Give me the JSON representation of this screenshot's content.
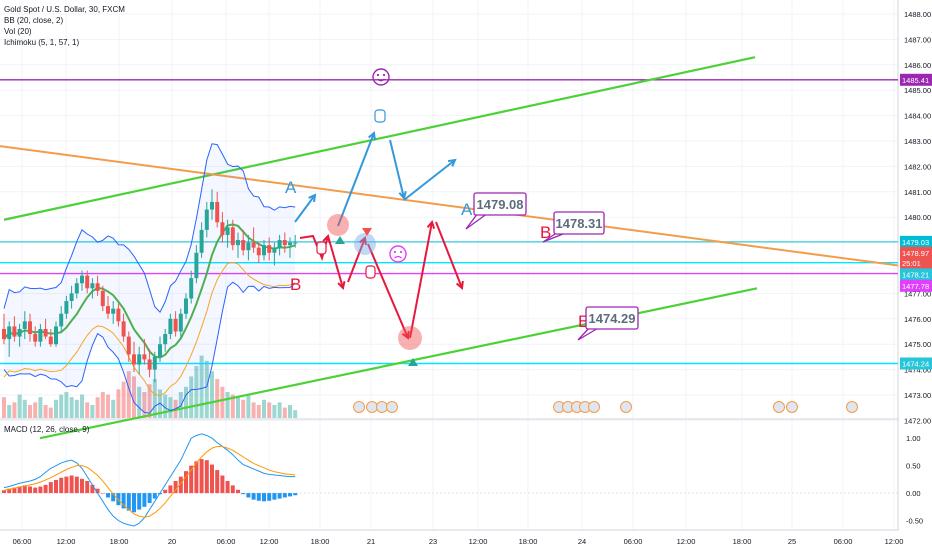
{
  "legend": {
    "title": "Gold Spot / U.S. Dollar, 30, FXCM",
    "bb": "BB (20, close, 2)",
    "vol": "Vol (20)",
    "ichimoku": "Ichimoku (5, 1, 57, 1)",
    "macd": "MACD (12, 26, close, 9)"
  },
  "colors": {
    "up": "#26a69a",
    "down": "#ef5350",
    "bb": "#2962ff",
    "ichimoku_base": "#4caf50",
    "channel": "#4cd137",
    "orange_trend": "#f39c4b",
    "magenta": "#e040fb",
    "purple": "#9c27b0",
    "cyan": "#00e5ff",
    "blue_arrow": "#3498db",
    "red_arrow": "#e8173c"
  },
  "chart_data": {
    "type": "candlestick",
    "price_axis": {
      "ticks": [
        "1488.00",
        "1487.00",
        "1486.00",
        "1485.00",
        "1484.00",
        "1483.00",
        "1482.00",
        "1481.00",
        "1480.00",
        "1479.00",
        "1478.00",
        "1477.00",
        "1476.00",
        "1475.00",
        "1474.00",
        "1473.00",
        "1472.00"
      ],
      "range": [
        1471.5,
        1488.5
      ]
    },
    "time_axis": {
      "ticks": [
        "06:00",
        "12:00",
        "18:00",
        "20",
        "06:00",
        "12:00",
        "18:00",
        "21",
        "23",
        "12:00",
        "18:00",
        "24",
        "06:00",
        "12:00",
        "18:00",
        "25",
        "06:00",
        "12:00"
      ]
    },
    "price_badges": [
      {
        "value": "1485.41",
        "color": "#9c27b0"
      },
      {
        "value": "1479.03",
        "color": "#00bcd4"
      },
      {
        "value": "1478.97",
        "color": "#ef5350"
      },
      {
        "value": "25:01",
        "color": "#ef5350"
      },
      {
        "value": "1478.21",
        "color": "#26c6da"
      },
      {
        "value": "1477.78",
        "color": "#e040fb"
      },
      {
        "value": "1474.24",
        "color": "#26c6da"
      }
    ],
    "horizontal_levels": [
      {
        "price": 1485.41,
        "color": "#9c27b0"
      },
      {
        "price": 1479.03,
        "color": "#4dd0e1"
      },
      {
        "price": 1478.21,
        "color": "#00e5ff"
      },
      {
        "price": 1477.78,
        "color": "#e040fb"
      },
      {
        "price": 1474.24,
        "color": "#00e5ff"
      }
    ],
    "callouts": [
      {
        "text": "1479.08"
      },
      {
        "text": "1478.31"
      },
      {
        "text": "1474.29"
      }
    ],
    "wave_labels": [
      {
        "text": "A",
        "color": "#3498db"
      },
      {
        "text": "B",
        "color": "#e8173c"
      },
      {
        "text": "A",
        "color": "#3498db"
      },
      {
        "text": "B",
        "color": "#e8173c"
      },
      {
        "text": "B",
        "color": "#e8173c"
      }
    ],
    "candles": [
      [
        1475.6,
        1476.2,
        1475.0,
        1475.2
      ],
      [
        1475.2,
        1475.9,
        1474.5,
        1475.7
      ],
      [
        1475.7,
        1476.1,
        1475.1,
        1475.3
      ],
      [
        1475.3,
        1475.8,
        1474.9,
        1475.6
      ],
      [
        1475.6,
        1476.3,
        1475.2,
        1475.9
      ],
      [
        1475.9,
        1476.2,
        1475.1,
        1475.4
      ],
      [
        1475.4,
        1475.7,
        1474.9,
        1475.1
      ],
      [
        1475.1,
        1475.8,
        1474.9,
        1475.6
      ],
      [
        1475.6,
        1476.0,
        1475.2,
        1475.3
      ],
      [
        1475.3,
        1475.6,
        1474.9,
        1475.0
      ],
      [
        1475.0,
        1475.9,
        1474.9,
        1475.7
      ],
      [
        1475.7,
        1476.5,
        1475.5,
        1476.2
      ],
      [
        1476.2,
        1476.9,
        1476.0,
        1476.7
      ],
      [
        1476.7,
        1477.3,
        1476.4,
        1477.0
      ],
      [
        1477.0,
        1477.6,
        1476.8,
        1477.4
      ],
      [
        1477.4,
        1477.9,
        1477.1,
        1477.7
      ],
      [
        1477.7,
        1477.9,
        1477.0,
        1477.2
      ],
      [
        1477.2,
        1477.6,
        1476.8,
        1477.4
      ],
      [
        1477.4,
        1477.7,
        1476.9,
        1477.1
      ],
      [
        1477.1,
        1477.3,
        1476.3,
        1476.5
      ],
      [
        1476.5,
        1476.9,
        1476.0,
        1476.2
      ],
      [
        1476.2,
        1476.7,
        1475.8,
        1476.4
      ],
      [
        1476.4,
        1476.6,
        1475.7,
        1475.9
      ],
      [
        1475.9,
        1476.2,
        1475.1,
        1475.3
      ],
      [
        1475.3,
        1475.5,
        1474.3,
        1474.6
      ],
      [
        1474.6,
        1475.1,
        1473.9,
        1474.2
      ],
      [
        1474.2,
        1474.9,
        1473.8,
        1474.6
      ],
      [
        1474.6,
        1475.2,
        1474.2,
        1474.4
      ],
      [
        1474.4,
        1474.8,
        1473.7,
        1474.0
      ],
      [
        1474.0,
        1474.7,
        1473.5,
        1474.5
      ],
      [
        1474.5,
        1475.3,
        1474.3,
        1475.0
      ],
      [
        1475.0,
        1475.6,
        1474.7,
        1475.4
      ],
      [
        1475.4,
        1476.2,
        1475.2,
        1476.0
      ],
      [
        1476.0,
        1476.3,
        1475.3,
        1475.5
      ],
      [
        1475.5,
        1476.4,
        1475.2,
        1476.2
      ],
      [
        1476.2,
        1477.0,
        1476.0,
        1476.8
      ],
      [
        1476.8,
        1477.9,
        1476.6,
        1477.6
      ],
      [
        1477.6,
        1478.9,
        1477.4,
        1478.6
      ],
      [
        1478.6,
        1479.8,
        1478.4,
        1479.5
      ],
      [
        1479.5,
        1480.6,
        1479.2,
        1480.3
      ],
      [
        1480.3,
        1481.1,
        1479.9,
        1480.6
      ],
      [
        1480.6,
        1481.0,
        1479.6,
        1479.8
      ],
      [
        1479.8,
        1480.2,
        1479.0,
        1479.3
      ],
      [
        1479.3,
        1479.9,
        1478.8,
        1479.6
      ],
      [
        1479.6,
        1479.9,
        1478.7,
        1478.9
      ],
      [
        1478.9,
        1479.4,
        1478.4,
        1479.1
      ],
      [
        1479.1,
        1479.5,
        1478.5,
        1478.7
      ],
      [
        1478.7,
        1479.3,
        1478.3,
        1479.0
      ],
      [
        1479.0,
        1479.6,
        1478.6,
        1478.8
      ],
      [
        1478.8,
        1479.0,
        1478.2,
        1478.5
      ],
      [
        1478.5,
        1479.1,
        1478.3,
        1478.9
      ],
      [
        1478.9,
        1479.2,
        1478.3,
        1478.6
      ],
      [
        1478.6,
        1479.0,
        1478.1,
        1478.8
      ],
      [
        1478.8,
        1479.3,
        1478.5,
        1479.1
      ],
      [
        1479.1,
        1479.4,
        1478.6,
        1478.9
      ],
      [
        1478.9,
        1479.2,
        1478.4,
        1479.0
      ],
      [
        1479.0,
        1479.3,
        1478.8,
        1479.0
      ]
    ],
    "volume": [
      8,
      5,
      6,
      9,
      7,
      5,
      6,
      8,
      5,
      4,
      7,
      9,
      10,
      8,
      7,
      9,
      6,
      5,
      8,
      10,
      9,
      7,
      11,
      14,
      18,
      16,
      12,
      10,
      13,
      15,
      11,
      9,
      8,
      7,
      10,
      12,
      16,
      20,
      24,
      22,
      18,
      15,
      12,
      10,
      9,
      8,
      7,
      9,
      6,
      5,
      7,
      6,
      5,
      6,
      4,
      5,
      3
    ],
    "macd_axis": {
      "ticks": [
        "1.00",
        "0.50",
        "0.00",
        "-0.50"
      ],
      "range": [
        -0.75,
        1.3
      ]
    },
    "macd_hist": [
      0.05,
      0.08,
      0.1,
      0.12,
      0.14,
      0.12,
      0.1,
      0.12,
      0.15,
      0.2,
      0.24,
      0.28,
      0.3,
      0.32,
      0.3,
      0.26,
      0.22,
      0.15,
      0.08,
      0.0,
      -0.08,
      -0.15,
      -0.22,
      -0.28,
      -0.32,
      -0.35,
      -0.3,
      -0.25,
      -0.18,
      -0.1,
      -0.02,
      0.06,
      0.14,
      0.22,
      0.3,
      0.4,
      0.5,
      0.58,
      0.62,
      0.6,
      0.52,
      0.42,
      0.32,
      0.22,
      0.14,
      0.06,
      -0.02,
      -0.08,
      -0.12,
      -0.14,
      -0.15,
      -0.14,
      -0.12,
      -0.1,
      -0.08,
      -0.06,
      -0.04
    ],
    "macd_line": [
      0.1,
      0.12,
      0.15,
      0.18,
      0.2,
      0.22,
      0.25,
      0.3,
      0.38,
      0.45,
      0.5,
      0.55,
      0.58,
      0.6,
      0.55,
      0.45,
      0.3,
      0.15,
      0.0,
      -0.15,
      -0.3,
      -0.42,
      -0.5,
      -0.55,
      -0.58,
      -0.6,
      -0.55,
      -0.45,
      -0.3,
      -0.15,
      0.0,
      0.15,
      0.3,
      0.45,
      0.6,
      0.8,
      1.0,
      1.05,
      1.08,
      1.05,
      1.0,
      0.92,
      0.85,
      0.78,
      0.7,
      0.6,
      0.52,
      0.48,
      0.44,
      0.4,
      0.36,
      0.34,
      0.33,
      0.32,
      0.31,
      0.3,
      0.3
    ],
    "signal_line": [
      0.05,
      0.07,
      0.09,
      0.11,
      0.13,
      0.15,
      0.17,
      0.2,
      0.24,
      0.28,
      0.33,
      0.38,
      0.43,
      0.47,
      0.5,
      0.5,
      0.47,
      0.4,
      0.32,
      0.22,
      0.1,
      -0.02,
      -0.12,
      -0.22,
      -0.3,
      -0.38,
      -0.42,
      -0.44,
      -0.42,
      -0.36,
      -0.28,
      -0.18,
      -0.06,
      0.06,
      0.18,
      0.3,
      0.42,
      0.55,
      0.66,
      0.75,
      0.82,
      0.85,
      0.85,
      0.82,
      0.78,
      0.72,
      0.66,
      0.6,
      0.54,
      0.5,
      0.46,
      0.42,
      0.39,
      0.37,
      0.35,
      0.34,
      0.33
    ]
  }
}
